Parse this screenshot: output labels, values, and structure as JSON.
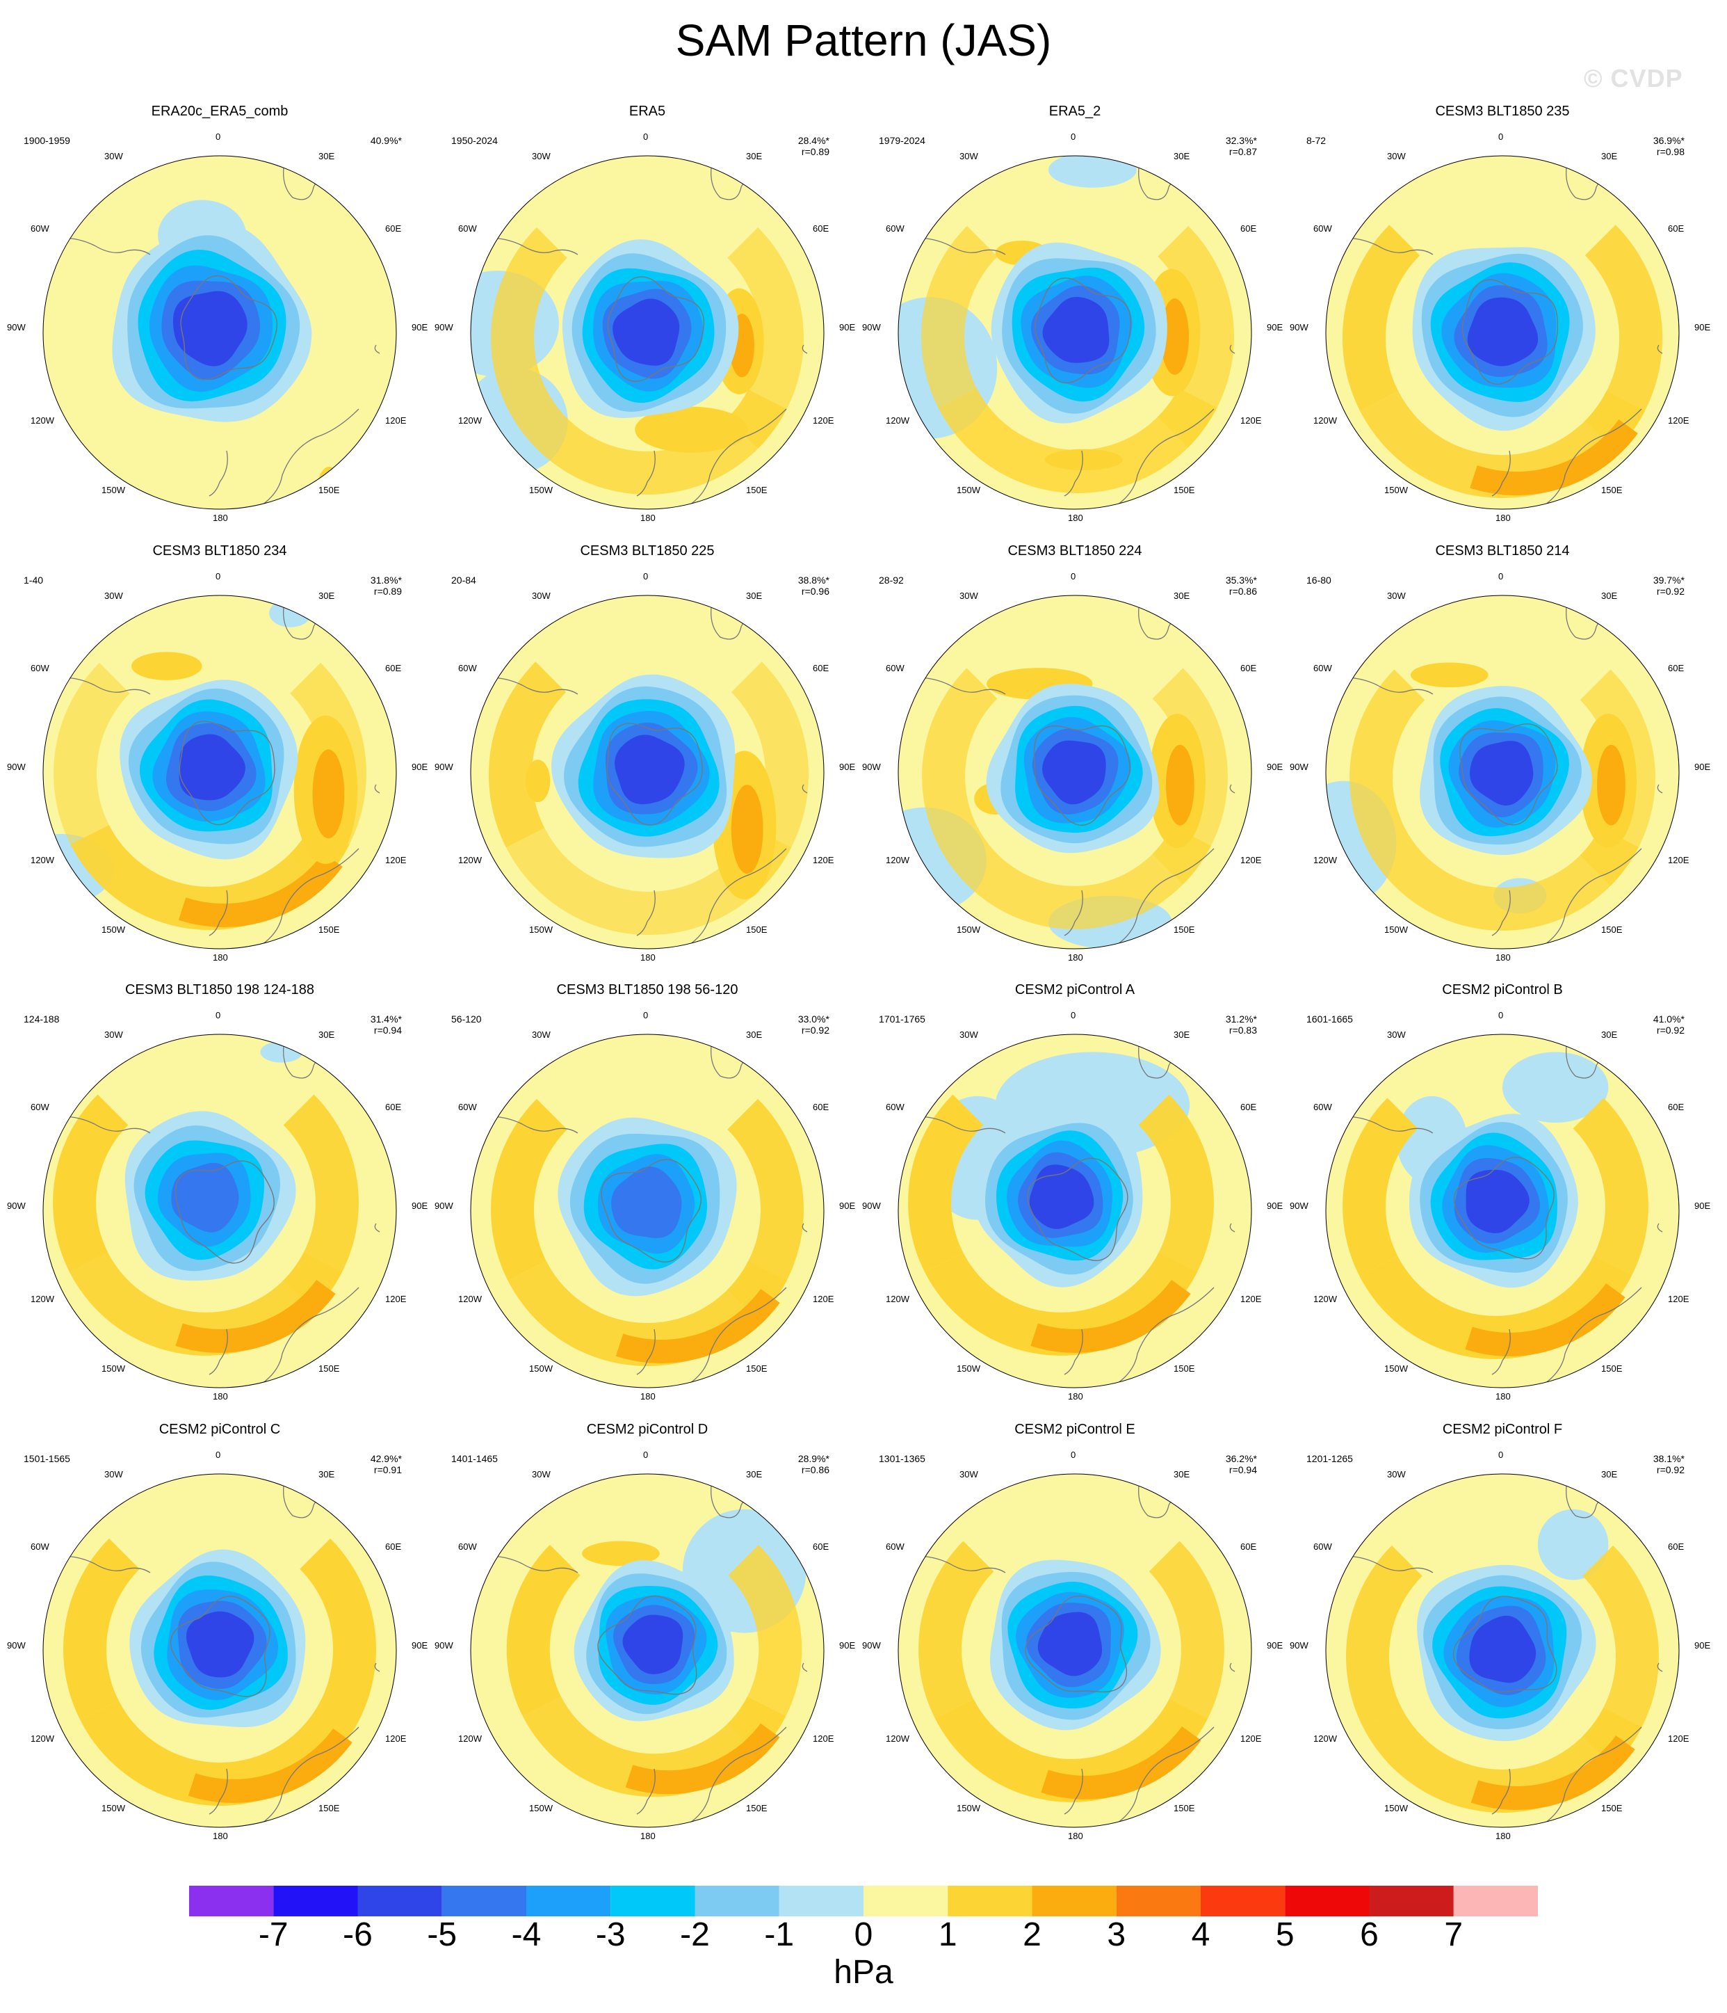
{
  "title": "SAM Pattern (JAS)",
  "watermark": "© CVDP",
  "units": "hPa",
  "longitude_labels": {
    "lon_0": "0",
    "lon_30e": "30E",
    "lon_60e": "60E",
    "lon_90e": "90E",
    "lon_120e": "120E",
    "lon_150e": "150E",
    "lon_180": "180",
    "lon_150w": "150W",
    "lon_120w": "120W",
    "lon_90w": "90W",
    "lon_60w": "60W",
    "lon_30w": "30W"
  },
  "colors": {
    "ocean_fill": "#fbf6a0",
    "continent_outline": "#777777",
    "levels": [
      "#8b30ef",
      "#2212f8",
      "#2f45e8",
      "#3477ee",
      "#1ca0f9",
      "#00c8f8",
      "#7dcbf2",
      "#b3e2f5",
      "#fbf6a0",
      "#fcd534",
      "#fbac0e",
      "#fa7911",
      "#fb3a10",
      "#ee0808",
      "#cc1c1c",
      "#fcb6b6"
    ]
  },
  "colorbar": {
    "labels": [
      "-7",
      "-6",
      "-5",
      "-4",
      "-3",
      "-2",
      "-1",
      "0",
      "1",
      "2",
      "3",
      "4",
      "5",
      "6",
      "7"
    ]
  },
  "panels": [
    {
      "title": "ERA20c_ERA5_comb",
      "period": "1900-1959",
      "pct": "40.9%*",
      "r": ""
    },
    {
      "title": "ERA5",
      "period": "1950-2024",
      "pct": "28.4%*",
      "r": "r=0.89"
    },
    {
      "title": "ERA5_2",
      "period": "1979-2024",
      "pct": "32.3%*",
      "r": "r=0.87"
    },
    {
      "title": "CESM3 BLT1850 235",
      "period": "8-72",
      "pct": "36.9%*",
      "r": "r=0.98"
    },
    {
      "title": "CESM3 BLT1850 234",
      "period": "1-40",
      "pct": "31.8%*",
      "r": "r=0.89"
    },
    {
      "title": "CESM3 BLT1850 225",
      "period": "20-84",
      "pct": "38.8%*",
      "r": "r=0.96"
    },
    {
      "title": "CESM3 BLT1850 224",
      "period": "28-92",
      "pct": "35.3%*",
      "r": "r=0.86"
    },
    {
      "title": "CESM3 BLT1850 214",
      "period": "16-80",
      "pct": "39.7%*",
      "r": "r=0.92"
    },
    {
      "title": "CESM3 BLT1850 198 124-188",
      "period": "124-188",
      "pct": "31.4%*",
      "r": "r=0.94"
    },
    {
      "title": "CESM3 BLT1850 198 56-120",
      "period": "56-120",
      "pct": "33.0%*",
      "r": "r=0.92"
    },
    {
      "title": "CESM2 piControl A",
      "period": "1701-1765",
      "pct": "31.2%*",
      "r": "r=0.83"
    },
    {
      "title": "CESM2 piControl B",
      "period": "1601-1665",
      "pct": "41.0%*",
      "r": "r=0.92"
    },
    {
      "title": "CESM2 piControl C",
      "period": "1501-1565",
      "pct": "42.9%*",
      "r": "r=0.91"
    },
    {
      "title": "CESM2 piControl D",
      "period": "1401-1465",
      "pct": "28.9%*",
      "r": "r=0.86"
    },
    {
      "title": "CESM2 piControl E",
      "period": "1301-1365",
      "pct": "36.2%*",
      "r": "r=0.94"
    },
    {
      "title": "CESM2 piControl F",
      "period": "1201-1265",
      "pct": "38.1%*",
      "r": "r=0.92"
    }
  ]
}
